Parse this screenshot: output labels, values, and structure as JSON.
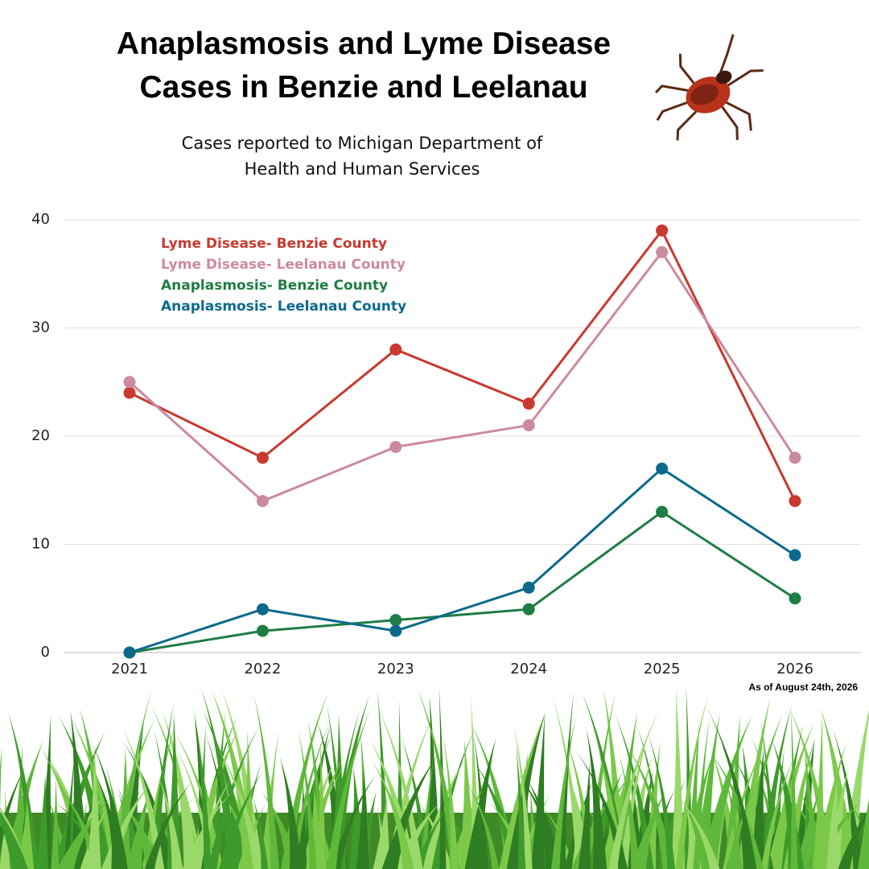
{
  "chart_data": {
    "type": "line",
    "title": "Anaplasmosis and Lyme Disease Cases in Benzie and Leelanau",
    "subtitle": "Cases reported to Michigan Department of Health and Human Services",
    "annotation": "As of August 24th, 2026",
    "categories": [
      "2021",
      "2022",
      "2023",
      "2024",
      "2025",
      "2026"
    ],
    "series": [
      {
        "name": "Lyme Disease- Benzie County",
        "color": "#c8392f",
        "values": [
          24,
          18,
          28,
          23,
          39,
          14
        ]
      },
      {
        "name": "Lyme Disease- Leelanau County",
        "color": "#cc8a9e",
        "values": [
          25,
          14,
          19,
          21,
          37,
          18
        ]
      },
      {
        "name": "Anaplasmosis- Benzie County",
        "color": "#1e7d44",
        "values": [
          0,
          2,
          3,
          4,
          13,
          5
        ]
      },
      {
        "name": "Anaplasmosis- Leelanau County",
        "color": "#0b6a8c",
        "values": [
          0,
          4,
          2,
          6,
          17,
          9
        ]
      }
    ],
    "ylim": [
      0,
      40
    ],
    "yticks": [
      0,
      10,
      20,
      30,
      40
    ],
    "grid": true
  }
}
